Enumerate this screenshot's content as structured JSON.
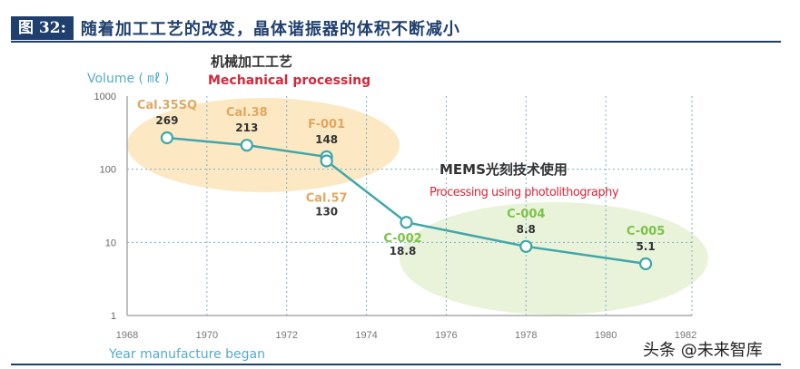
{
  "header": {
    "figure_label": "图 32:",
    "title": "随着加工工艺的改变，晶体谐振器的体积不断减小"
  },
  "watermark": "头条 @未来智库",
  "chart_data": {
    "type": "line",
    "ylabel": "Volume ( ㎖ )",
    "xlabel": "Year manufacture began",
    "y_scale": "log",
    "ylim": [
      1,
      1000
    ],
    "xlim": [
      1968,
      1982
    ],
    "yticks": [
      "1000",
      "100",
      "10",
      "1"
    ],
    "xticks": [
      "1968",
      "1970",
      "1972",
      "1974",
      "1976",
      "1978",
      "1980",
      "1982"
    ],
    "grid": true,
    "points": [
      {
        "name": "Cal.35SQ",
        "x": 1969,
        "y": 269,
        "group": "mech"
      },
      {
        "name": "Cal.38",
        "x": 1971,
        "y": 213,
        "group": "mech"
      },
      {
        "name": "F-001",
        "x": 1973,
        "y": 148,
        "group": "mech"
      },
      {
        "name": "Cal.57",
        "x": 1973,
        "y": 130,
        "group": "mech"
      },
      {
        "name": "C-002",
        "x": 1975,
        "y": 18.8,
        "group": "mems"
      },
      {
        "name": "C-004",
        "x": 1978,
        "y": 8.8,
        "group": "mems"
      },
      {
        "name": "C-005",
        "x": 1981,
        "y": 5.1,
        "group": "mems"
      }
    ],
    "annotations": {
      "mech_cn": "机械加工工艺",
      "mech_en": "Mechanical processing",
      "mems_cn": "MEMS光刻技术使用",
      "mems_en": "Processing using photolithography"
    },
    "colors": {
      "line": "#3fa7a9",
      "mech_label": "#e0a860",
      "mems_label": "#7cc24a",
      "mech_bg": "#fbe3b5",
      "mems_bg": "#e3f0cf",
      "en_red": "#d4283c",
      "axis_label": "#55aacc"
    }
  }
}
